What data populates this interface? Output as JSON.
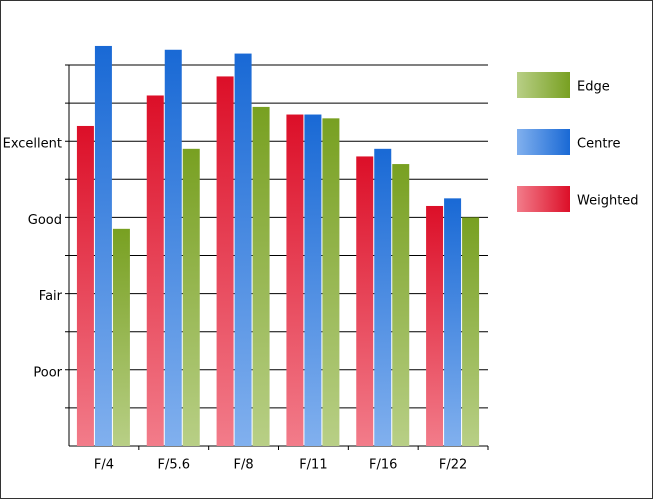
{
  "chart_data": {
    "type": "bar",
    "categories": [
      "F/4",
      "F/5.6",
      "F/8",
      "F/11",
      "F/16",
      "F/22"
    ],
    "series": [
      {
        "name": "Edge",
        "color": "#7ea823",
        "values": [
          5.7,
          7.8,
          8.9,
          8.6,
          7.4,
          6.0
        ]
      },
      {
        "name": "Centre",
        "color": "#1a6fe0",
        "values": [
          10.5,
          10.4,
          10.3,
          8.7,
          7.8,
          6.5
        ]
      },
      {
        "name": "Weighted",
        "color": "#e8102a",
        "values": [
          8.4,
          9.2,
          9.7,
          8.7,
          7.6,
          6.3
        ]
      }
    ],
    "ylim": [
      0,
      10
    ],
    "yticks": [
      {
        "value": 2,
        "label": "Poor"
      },
      {
        "value": 4,
        "label": "Fair"
      },
      {
        "value": 6,
        "label": "Good"
      },
      {
        "value": 8,
        "label": "Excellent"
      }
    ],
    "minor_yticks": [
      1,
      3,
      5,
      7,
      9,
      10
    ],
    "grid": true
  }
}
